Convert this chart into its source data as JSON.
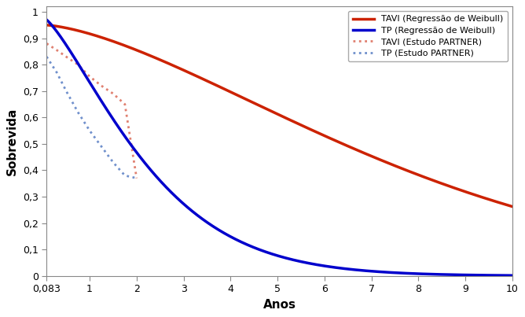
{
  "title": "",
  "xlabel": "Anos",
  "ylabel": "Sobrevida",
  "xlim": [
    0.083,
    10
  ],
  "ylim": [
    0,
    1.02
  ],
  "xticks": [
    0.083,
    1,
    2,
    3,
    4,
    5,
    6,
    7,
    8,
    9,
    10
  ],
  "xticklabels": [
    "0,083",
    "1",
    "2",
    "3",
    "4",
    "5",
    "6",
    "7",
    "8",
    "9",
    "10"
  ],
  "yticks": [
    0,
    0.1,
    0.2,
    0.3,
    0.4,
    0.5,
    0.6,
    0.7,
    0.8,
    0.9,
    1
  ],
  "yticklabels": [
    "0",
    "0,1",
    "0,2",
    "0,3",
    "0,4",
    "0,5",
    "0,6",
    "0,7",
    "0,8",
    "0,9",
    "1"
  ],
  "tavi_weibull_color": "#CC2200",
  "tp_weibull_color": "#0000CC",
  "tavi_partner_color": "#E08070",
  "tp_partner_color": "#7090CC",
  "legend_labels": [
    "TAVI (Regressão de Weibull)",
    "TP (Regressão de Weibull)",
    "TAVI (Estudo PARTNER)",
    "TP (Estudo PARTNER)"
  ],
  "tavi_eta": 8.5,
  "tavi_k": 1.55,
  "tp_eta": 2.5,
  "tp_k": 1.35,
  "tavi_partner_x": [
    0.083,
    0.3,
    0.5,
    0.75,
    1.0,
    1.25,
    1.5,
    1.75,
    2.0
  ],
  "tavi_partner_y": [
    0.88,
    0.855,
    0.83,
    0.8,
    0.755,
    0.72,
    0.69,
    0.65,
    0.37
  ],
  "tp_partner_x": [
    0.083,
    0.3,
    0.5,
    0.75,
    1.0,
    1.25,
    1.5,
    1.75,
    2.0
  ],
  "tp_partner_y": [
    0.83,
    0.77,
    0.7,
    0.62,
    0.55,
    0.49,
    0.43,
    0.38,
    0.37
  ],
  "font_size": 9,
  "label_font_size": 11,
  "tick_font_size": 9
}
